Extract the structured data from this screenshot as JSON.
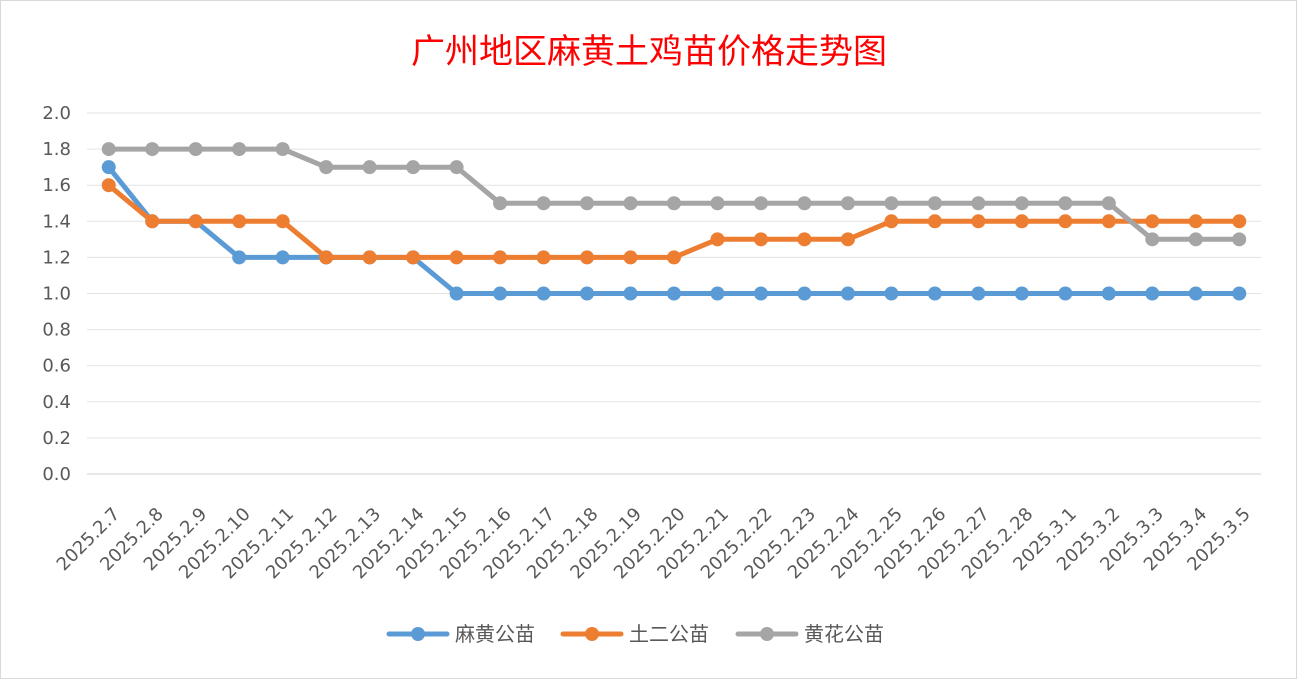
{
  "chart_data": {
    "type": "line",
    "title": "广州地区麻黄土鸡苗价格走势图",
    "categories": [
      "2025.2.7",
      "2025.2.8",
      "2025.2.9",
      "2025.2.10",
      "2025.2.11",
      "2025.2.12",
      "2025.2.13",
      "2025.2.14",
      "2025.2.15",
      "2025.2.16",
      "2025.2.17",
      "2025.2.18",
      "2025.2.19",
      "2025.2.20",
      "2025.2.21",
      "2025.2.22",
      "2025.2.23",
      "2025.2.24",
      "2025.2.25",
      "2025.2.26",
      "2025.2.27",
      "2025.2.28",
      "2025.3.1",
      "2025.3.2",
      "2025.3.3",
      "2025.3.4",
      "2025.3.5"
    ],
    "series": [
      {
        "name": "麻黄公苗",
        "color": "#5b9bd5",
        "values": [
          1.7,
          1.4,
          1.4,
          1.2,
          1.2,
          1.2,
          1.2,
          1.2,
          1.0,
          1.0,
          1.0,
          1.0,
          1.0,
          1.0,
          1.0,
          1.0,
          1.0,
          1.0,
          1.0,
          1.0,
          1.0,
          1.0,
          1.0,
          1.0,
          1.0,
          1.0,
          1.0
        ]
      },
      {
        "name": "土二公苗",
        "color": "#ed7d31",
        "values": [
          1.6,
          1.4,
          1.4,
          1.4,
          1.4,
          1.2,
          1.2,
          1.2,
          1.2,
          1.2,
          1.2,
          1.2,
          1.2,
          1.2,
          1.3,
          1.3,
          1.3,
          1.3,
          1.4,
          1.4,
          1.4,
          1.4,
          1.4,
          1.4,
          1.4,
          1.4,
          1.4
        ]
      },
      {
        "name": "黄花公苗",
        "color": "#a5a5a5",
        "values": [
          1.8,
          1.8,
          1.8,
          1.8,
          1.8,
          1.7,
          1.7,
          1.7,
          1.7,
          1.5,
          1.5,
          1.5,
          1.5,
          1.5,
          1.5,
          1.5,
          1.5,
          1.5,
          1.5,
          1.5,
          1.5,
          1.5,
          1.5,
          1.5,
          1.3,
          1.3,
          1.3
        ]
      }
    ],
    "ylim": [
      0,
      2.0
    ],
    "yticks": [
      "0.0",
      "0.2",
      "0.4",
      "0.6",
      "0.8",
      "1.0",
      "1.2",
      "1.4",
      "1.6",
      "1.8",
      "2.0"
    ],
    "grid": true,
    "legend_position": "bottom"
  }
}
